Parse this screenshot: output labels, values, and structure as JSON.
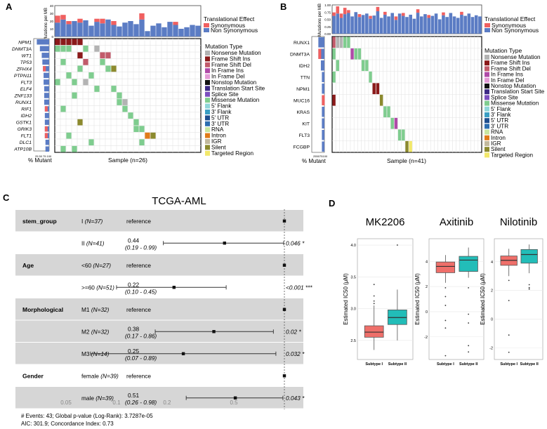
{
  "panel_labels": {
    "a": "A",
    "b": "B",
    "c": "C",
    "d": "D"
  },
  "panel_a": {
    "ylabel_top": "Mutations per MB",
    "ticks_top": [
      "0",
      "10",
      "20",
      "30",
      "40"
    ],
    "legend_effect_title": "Translational Effect",
    "legend_effect": [
      "Synonymous",
      "Non Synonymous"
    ],
    "mutation_type_title": "Mutation Type",
    "xlabel": "Sample (n=26)",
    "left_xlabel": "% Mutant",
    "left_ticks": [
      "25",
      "50",
      "75",
      "100"
    ]
  },
  "panel_b": {
    "ylabel_top": "Mutations per MB",
    "ticks_top": [
      "0.00",
      "0.25",
      "0.50",
      "0.75",
      "1.00"
    ],
    "legend_effect_title": "Translational Effect",
    "legend_effect": [
      "Synonymous",
      "Non Synonymous"
    ],
    "mutation_type_title": "Mutation Type",
    "xlabel": "Sample (n=41)",
    "left_xlabel": "% Mutant",
    "left_ticks": [
      "25",
      "50",
      "75",
      "100"
    ]
  },
  "mutation_types": [
    {
      "label": "Nonsense Mutation",
      "color": "#b3b3b3"
    },
    {
      "label": "Frame Shift Ins",
      "color": "#8b1a1a"
    },
    {
      "label": "Frame Shift Del",
      "color": "#c25b6b"
    },
    {
      "label": "In Frame Ins",
      "color": "#b04aa8"
    },
    {
      "label": "In Frame Del",
      "color": "#e39ad6"
    },
    {
      "label": "Nonstop Mutation",
      "color": "#111111"
    },
    {
      "label": "Translation Start Site",
      "color": "#3d2a85"
    },
    {
      "label": "Splice Site",
      "color": "#7b4fbf"
    },
    {
      "label": "Missense Mutation",
      "color": "#7fcd8f"
    },
    {
      "label": "5' Flank",
      "color": "#8fd6d9"
    },
    {
      "label": "3' Flank",
      "color": "#3a9fc4"
    },
    {
      "label": "5' UTR",
      "color": "#1f4f8f"
    },
    {
      "label": "3' UTR",
      "color": "#2e6fb0"
    },
    {
      "label": "RNA",
      "color": "#c8e6a0"
    },
    {
      "label": "Intron",
      "color": "#e07b1a"
    },
    {
      "label": "IGR",
      "color": "#c2b99d"
    },
    {
      "label": "Silent",
      "color": "#8c8a2e"
    },
    {
      "label": "Targeted Region",
      "color": "#f2e86b"
    }
  ],
  "panel_c": {
    "title": "TCGA-AML",
    "footer": [
      "# Events: 43; Global p-value (Log-Rank): 3.7287e-05",
      "AIC: 301.9; Concordance Index: 0.73"
    ],
    "x_ticks": [
      "0.05",
      "0.1",
      "0.2",
      "0.5"
    ],
    "rows": [
      {
        "group": "stem_group",
        "level": "I",
        "n": "(N=37)",
        "est": "reference",
        "ci": "",
        "p": ""
      },
      {
        "group": "",
        "level": "II",
        "n": "(N=41)",
        "est": "0.44",
        "ci": "(0.19 - 0.99)",
        "p": "0.046 *"
      },
      {
        "group": "Age",
        "level": "<60",
        "n": "(N=27)",
        "est": "reference",
        "ci": "",
        "p": ""
      },
      {
        "group": "",
        "level": ">=60",
        "n": "(N=51)",
        "est": "0.22",
        "ci": "(0.10 - 0.45)",
        "p": "<0.001 ***"
      },
      {
        "group": "Morphological",
        "level": "M1",
        "n": "(N=32)",
        "est": "reference",
        "ci": "",
        "p": ""
      },
      {
        "group": "",
        "level": "M2",
        "n": "(N=32)",
        "est": "0.38",
        "ci": "(0.17 - 0.86)",
        "p": "0.02 *"
      },
      {
        "group": "",
        "level": "M3",
        "n": "(N=14)",
        "est": "0.25",
        "ci": "(0.07 - 0.89)",
        "p": "0.032 *"
      },
      {
        "group": "Gender",
        "level": "female",
        "n": "(N=39)",
        "est": "reference",
        "ci": "",
        "p": ""
      },
      {
        "group": "",
        "level": "male",
        "n": "(N=39)",
        "est": "0.51",
        "ci": "(0.26 - 0.98)",
        "p": "0.043 *"
      }
    ]
  },
  "panel_d": {
    "ylabel": "Estimated IC50 (μM)",
    "groups": [
      "Subtype I",
      "Subtype II"
    ],
    "colors": [
      "#ef6f6a",
      "#22bdb8"
    ]
  },
  "chart_data": [
    {
      "type": "heatmap",
      "title": "Panel A oncoplot",
      "genes": [
        "NPM1",
        "DNMT3A",
        "WT1",
        "TP53",
        "ZFHX4",
        "PTPN11",
        "FLT3",
        "ELF4",
        "ZNF133",
        "RUNX1",
        "RIF1",
        "IDH2",
        "GSTK1",
        "GRIK3",
        "FLT1",
        "DLC1",
        "ATP10B"
      ],
      "percent_mutant": [
        20,
        15,
        12,
        11,
        10,
        9,
        9,
        8,
        8,
        8,
        7,
        7,
        7,
        7,
        7,
        6,
        6
      ],
      "samples": 26,
      "mutations": [
        [
          0,
          0,
          "Frame Shift Ins"
        ],
        [
          0,
          1,
          "Frame Shift Ins"
        ],
        [
          0,
          2,
          "Frame Shift Ins"
        ],
        [
          0,
          3,
          "Frame Shift Ins"
        ],
        [
          0,
          4,
          "Frame Shift Ins"
        ],
        [
          1,
          0,
          "Missense Mutation"
        ],
        [
          1,
          1,
          "Missense Mutation"
        ],
        [
          1,
          2,
          "Missense Mutation"
        ],
        [
          1,
          5,
          "Missense Mutation"
        ],
        [
          1,
          7,
          "Nonsense Mutation"
        ],
        [
          2,
          4,
          "Frame Shift Ins"
        ],
        [
          2,
          8,
          "Frame Shift Del"
        ],
        [
          2,
          9,
          "Frame Shift Del"
        ],
        [
          3,
          1,
          "Missense Mutation"
        ],
        [
          3,
          5,
          "Frame Shift Del"
        ],
        [
          3,
          8,
          "Missense Mutation"
        ],
        [
          4,
          4,
          "Missense Mutation"
        ],
        [
          4,
          9,
          "Missense Mutation"
        ],
        [
          4,
          10,
          "Silent"
        ],
        [
          5,
          2,
          "Missense Mutation"
        ],
        [
          5,
          6,
          "Missense Mutation"
        ],
        [
          6,
          0,
          "Missense Mutation"
        ],
        [
          6,
          3,
          "Missense Mutation"
        ],
        [
          6,
          5,
          "Nonsense Mutation"
        ],
        [
          7,
          7,
          "Missense Mutation"
        ],
        [
          7,
          10,
          "Missense Mutation"
        ],
        [
          8,
          3,
          "Missense Mutation"
        ],
        [
          8,
          11,
          "Missense Mutation"
        ],
        [
          9,
          11,
          "Missense Mutation"
        ],
        [
          9,
          12,
          "Nonsense Mutation"
        ],
        [
          10,
          1,
          "Missense Mutation"
        ],
        [
          10,
          12,
          "Missense Mutation"
        ],
        [
          11,
          13,
          "Missense Mutation"
        ],
        [
          12,
          4,
          "Silent"
        ],
        [
          12,
          14,
          "Missense Mutation"
        ],
        [
          13,
          14,
          "Missense Mutation"
        ],
        [
          13,
          15,
          "Missense Mutation"
        ],
        [
          14,
          2,
          "Missense Mutation"
        ],
        [
          14,
          16,
          "Intron"
        ],
        [
          14,
          17,
          "Silent"
        ],
        [
          15,
          6,
          "Missense Mutation"
        ],
        [
          15,
          15,
          "Missense Mutation"
        ],
        [
          16,
          1,
          "Missense Mutation"
        ],
        [
          16,
          3,
          "Missense Mutation"
        ]
      ],
      "bar_legend": [
        "Synonymous",
        "Non Synonymous"
      ]
    },
    {
      "type": "heatmap",
      "title": "Panel B oncoplot",
      "genes": [
        "RUNX1",
        "DNMT3A",
        "IDH2",
        "TTN",
        "NPM1",
        "MUC16",
        "KRAS",
        "KIT",
        "FLT3",
        "FCGBP"
      ],
      "percent_mutant": [
        12,
        12,
        7,
        5,
        5,
        5,
        5,
        5,
        5,
        5
      ],
      "samples": 41,
      "mutations": [
        [
          0,
          0,
          "Frame Shift Del"
        ],
        [
          0,
          1,
          "Nonsense Mutation"
        ],
        [
          0,
          2,
          "Nonsense Mutation"
        ],
        [
          0,
          3,
          "Missense Mutation"
        ],
        [
          0,
          4,
          "Missense Mutation"
        ],
        [
          1,
          0,
          "Missense Mutation"
        ],
        [
          1,
          5,
          "In Frame Ins"
        ],
        [
          1,
          6,
          "Missense Mutation"
        ],
        [
          1,
          7,
          "Missense Mutation"
        ],
        [
          2,
          1,
          "Missense Mutation"
        ],
        [
          2,
          8,
          "Missense Mutation"
        ],
        [
          2,
          9,
          "Missense Mutation"
        ],
        [
          3,
          0,
          "Missense Mutation"
        ],
        [
          3,
          10,
          "Missense Mutation"
        ],
        [
          4,
          11,
          "Frame Shift Ins"
        ],
        [
          4,
          12,
          "Frame Shift Ins"
        ],
        [
          5,
          0,
          "Frame Shift Ins"
        ],
        [
          5,
          13,
          "Silent"
        ],
        [
          6,
          14,
          "Missense Mutation"
        ],
        [
          6,
          15,
          "Missense Mutation"
        ],
        [
          7,
          16,
          "Missense Mutation"
        ],
        [
          7,
          17,
          "In Frame Ins"
        ],
        [
          8,
          18,
          "Missense Mutation"
        ],
        [
          8,
          19,
          "Missense Mutation"
        ],
        [
          9,
          20,
          "Silent"
        ],
        [
          9,
          21,
          "Targeted Region"
        ]
      ],
      "bar_legend": [
        "Synonymous",
        "Non Synonymous"
      ]
    },
    {
      "type": "scatter",
      "title": "TCGA-AML",
      "x_scale": "log",
      "xlim": [
        0.05,
        1
      ],
      "x_ticks": [
        0.05,
        0.1,
        0.2,
        0.5
      ],
      "rows": [
        {
          "label": "stem_group I",
          "hr": 1,
          "lo": null,
          "hi": null
        },
        {
          "label": "stem_group II",
          "hr": 0.44,
          "lo": 0.19,
          "hi": 0.99
        },
        {
          "label": "Age <60",
          "hr": 1,
          "lo": null,
          "hi": null
        },
        {
          "label": "Age >=60",
          "hr": 0.22,
          "lo": 0.1,
          "hi": 0.45
        },
        {
          "label": "Morphological M1",
          "hr": 1,
          "lo": null,
          "hi": null
        },
        {
          "label": "Morphological M2",
          "hr": 0.38,
          "lo": 0.17,
          "hi": 0.86
        },
        {
          "label": "Morphological M3",
          "hr": 0.25,
          "lo": 0.07,
          "hi": 0.89
        },
        {
          "label": "Gender female",
          "hr": 1,
          "lo": null,
          "hi": null
        },
        {
          "label": "Gender male",
          "hr": 0.51,
          "lo": 0.26,
          "hi": 0.98
        }
      ]
    },
    {
      "type": "box",
      "panels": [
        {
          "title": "MK2206",
          "ylim": [
            2.2,
            4.1
          ],
          "yticks": [
            2.5,
            3.0,
            3.5,
            4.0
          ],
          "boxes": [
            {
              "group": "Subtype I",
              "min": 2.35,
              "q1": 2.55,
              "median": 2.63,
              "q3": 2.73,
              "max": 3.05,
              "outliers": [
                3.08,
                3.12,
                3.2,
                3.38
              ]
            },
            {
              "group": "Subtype II",
              "min": 2.5,
              "q1": 2.75,
              "median": 2.86,
              "q3": 2.98,
              "max": 3.3,
              "outliers": [
                4.0
              ]
            }
          ]
        },
        {
          "title": "Axitinib",
          "ylim": [
            -3.8,
            5.8
          ],
          "yticks": [
            -2,
            0,
            2,
            4
          ],
          "boxes": [
            {
              "group": "Subtype I",
              "min": 2.3,
              "q1": 3.1,
              "median": 3.6,
              "q3": 3.95,
              "max": 4.5,
              "outliers": [
                1.9,
                1.2,
                0.5,
                -0.7,
                -1.3,
                -3.5
              ]
            },
            {
              "group": "Subtype II",
              "min": 2.7,
              "q1": 3.2,
              "median": 4.1,
              "q3": 4.4,
              "max": 5.1,
              "outliers": [
                1.9,
                -0.2,
                -0.9,
                -2.7,
                -3.2
              ]
            }
          ]
        },
        {
          "title": "Nilotinib",
          "ylim": [
            -2.8,
            5.6
          ],
          "yticks": [
            -2,
            0,
            2,
            4
          ],
          "boxes": [
            {
              "group": "Subtype I",
              "min": 3.0,
              "q1": 3.75,
              "median": 4.1,
              "q3": 4.4,
              "max": 4.9,
              "outliers": [
                2.7,
                1.3,
                -1.1,
                -2.3
              ]
            },
            {
              "group": "Subtype II",
              "min": 3.2,
              "q1": 3.9,
              "median": 4.5,
              "q3": 4.85,
              "max": 5.2,
              "outliers": [
                2.4,
                2.2,
                2.1
              ]
            }
          ]
        }
      ],
      "ylabel": "Estimated IC50 (μM)",
      "categories": [
        "Subtype I",
        "Subtype II"
      ]
    }
  ]
}
